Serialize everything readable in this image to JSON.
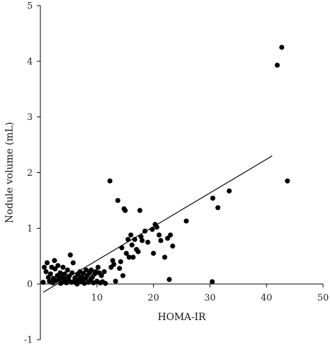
{
  "chart_data": {
    "type": "scatter",
    "title": "",
    "xlabel": "HOMA-IR",
    "ylabel": "Nodule volume (mL)",
    "xlim": [
      0,
      50
    ],
    "ylim": [
      -1,
      5
    ],
    "xticks": [
      10,
      20,
      30,
      40,
      50
    ],
    "yticks": [
      -1,
      0,
      1,
      2,
      3,
      4,
      5
    ],
    "grid": false,
    "legend": "none",
    "marker_color": "#000000",
    "points": [
      [
        0.5,
        0.03
      ],
      [
        0.7,
        0.3
      ],
      [
        1.0,
        0.22
      ],
      [
        1.2,
        0.38
      ],
      [
        1.4,
        0.12
      ],
      [
        1.6,
        0.05
      ],
      [
        1.8,
        0.18
      ],
      [
        2.0,
        0.3
      ],
      [
        2.2,
        0.02
      ],
      [
        2.3,
        0.1
      ],
      [
        2.5,
        0.42
      ],
      [
        2.6,
        0.27
      ],
      [
        2.8,
        0.06
      ],
      [
        3.0,
        0.15
      ],
      [
        3.1,
        0.33
      ],
      [
        3.3,
        0.08
      ],
      [
        3.5,
        0.2
      ],
      [
        3.6,
        0.01
      ],
      [
        3.8,
        0.12
      ],
      [
        4.0,
        0.3
      ],
      [
        4.1,
        0.04
      ],
      [
        4.3,
        0.18
      ],
      [
        4.5,
        0.1
      ],
      [
        4.6,
        0.02
      ],
      [
        4.8,
        0.25
      ],
      [
        5.0,
        0.07
      ],
      [
        5.1,
        0.14
      ],
      [
        5.3,
        0.52
      ],
      [
        5.5,
        0.03
      ],
      [
        5.6,
        0.2
      ],
      [
        5.8,
        0.38
      ],
      [
        6.0,
        0.05
      ],
      [
        6.1,
        0.11
      ],
      [
        6.3,
        0.02
      ],
      [
        6.5,
        0.0
      ],
      [
        6.6,
        0.17
      ],
      [
        6.8,
        0.08
      ],
      [
        7.0,
        0.22
      ],
      [
        7.1,
        0.04
      ],
      [
        7.3,
        0.13
      ],
      [
        7.5,
        0.06
      ],
      [
        7.6,
        0.19
      ],
      [
        7.8,
        0.01
      ],
      [
        8.0,
        0.1
      ],
      [
        8.1,
        0.25
      ],
      [
        8.3,
        0.15
      ],
      [
        8.5,
        0.03
      ],
      [
        8.7,
        0.2
      ],
      [
        8.9,
        0.08
      ],
      [
        9.0,
        0.25
      ],
      [
        9.2,
        0.12
      ],
      [
        9.4,
        0.02
      ],
      [
        9.6,
        0.18
      ],
      [
        9.8,
        0.22
      ],
      [
        10.0,
        0.05
      ],
      [
        10.2,
        0.3
      ],
      [
        10.4,
        0.2
      ],
      [
        10.6,
        0.02
      ],
      [
        10.8,
        0.15
      ],
      [
        11.0,
        0.04
      ],
      [
        11.3,
        0.22
      ],
      [
        11.5,
        0.01
      ],
      [
        12.3,
        1.85
      ],
      [
        12.5,
        0.3
      ],
      [
        12.8,
        0.42
      ],
      [
        13.0,
        0.35
      ],
      [
        13.3,
        0.05
      ],
      [
        13.7,
        1.5
      ],
      [
        14.0,
        0.28
      ],
      [
        14.2,
        0.4
      ],
      [
        14.4,
        0.65
      ],
      [
        14.6,
        0.15
      ],
      [
        14.8,
        1.35
      ],
      [
        15.0,
        1.32
      ],
      [
        15.2,
        0.55
      ],
      [
        15.5,
        0.8
      ],
      [
        15.7,
        0.48
      ],
      [
        16.0,
        0.88
      ],
      [
        16.2,
        0.7
      ],
      [
        16.4,
        0.48
      ],
      [
        16.7,
        0.8
      ],
      [
        17.0,
        0.62
      ],
      [
        17.3,
        0.58
      ],
      [
        17.6,
        1.32
      ],
      [
        17.8,
        0.85
      ],
      [
        18.0,
        0.78
      ],
      [
        18.5,
        0.95
      ],
      [
        19.0,
        0.75
      ],
      [
        19.8,
        0.98
      ],
      [
        20.0,
        0.55
      ],
      [
        20.3,
        1.07
      ],
      [
        20.6,
        1.02
      ],
      [
        21.0,
        0.88
      ],
      [
        21.3,
        0.78
      ],
      [
        22.0,
        0.48
      ],
      [
        22.5,
        0.82
      ],
      [
        23.0,
        0.88
      ],
      [
        23.4,
        0.68
      ],
      [
        22.8,
        0.08
      ],
      [
        25.8,
        1.13
      ],
      [
        30.5,
        1.54
      ],
      [
        31.4,
        1.37
      ],
      [
        33.4,
        1.67
      ],
      [
        30.4,
        0.04
      ],
      [
        41.9,
        3.93
      ],
      [
        42.7,
        4.25
      ],
      [
        43.7,
        1.85
      ]
    ],
    "trendline": {
      "x": [
        0.5,
        41.0
      ],
      "y": [
        -0.15,
        2.3
      ]
    }
  }
}
